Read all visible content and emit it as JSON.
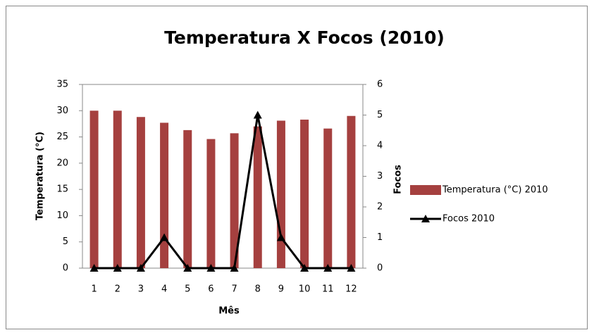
{
  "chart_data": {
    "type": "bar",
    "title": "Temperatura X Focos (2010)",
    "x_label": "Mês",
    "y_label": "Temperatura (°C)",
    "y2_label": "Focos",
    "categories": [
      "1",
      "2",
      "3",
      "4",
      "5",
      "6",
      "7",
      "8",
      "9",
      "10",
      "11",
      "12"
    ],
    "series": [
      {
        "name": "Temperatura (°C) 2010",
        "type": "bar",
        "color": "#a5403f",
        "values": [
          30,
          30,
          28.8,
          27.7,
          26.3,
          24.6,
          25.7,
          27,
          28.1,
          28.3,
          26.6,
          29
        ]
      },
      {
        "name": "Focos 2010",
        "type": "line",
        "axis": "y2",
        "color": "#000000",
        "values": [
          0,
          0,
          0,
          1,
          0,
          0,
          0,
          5,
          1,
          0,
          0,
          0
        ]
      }
    ],
    "ylim": [
      0,
      35
    ],
    "yticks": [
      0,
      5,
      10,
      15,
      20,
      25,
      30,
      35
    ],
    "y2lim": [
      0,
      6
    ],
    "y2ticks": [
      0,
      1,
      2,
      3,
      4,
      5,
      6
    ],
    "legend": "right"
  }
}
